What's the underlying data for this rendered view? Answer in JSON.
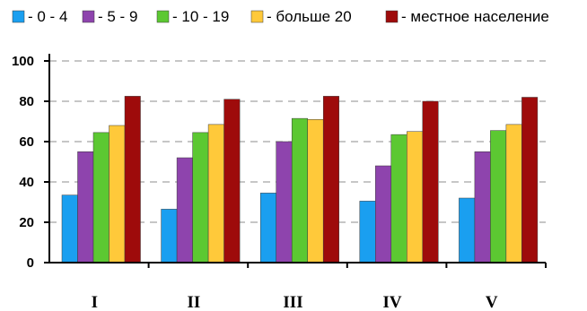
{
  "chart_data": {
    "type": "bar",
    "title": "",
    "xlabel": "",
    "ylabel": "",
    "categories": [
      "I",
      "II",
      "III",
      "IV",
      "V"
    ],
    "series": [
      {
        "name": "- 0 - 4",
        "color": "#1a9ff0",
        "values": [
          33.5,
          26.5,
          34.5,
          30.5,
          32
        ]
      },
      {
        "name": "- 5 - 9",
        "color": "#8e44ad",
        "values": [
          55,
          52,
          60,
          48,
          55
        ]
      },
      {
        "name": "- 10 - 19",
        "color": "#5cc832",
        "values": [
          64.5,
          64.5,
          71.5,
          63.5,
          65.5
        ]
      },
      {
        "name": "- больше 20",
        "color": "#ffc93a",
        "values": [
          68,
          68.5,
          71,
          65,
          68.5
        ]
      },
      {
        "name": "- местное население",
        "color": "#9e0b0b",
        "values": [
          82.5,
          81,
          82.5,
          80,
          82
        ]
      }
    ],
    "ylim": [
      0,
      100
    ],
    "yticks": [
      "0",
      "20",
      "40",
      "60",
      "80",
      "100"
    ],
    "grid": true,
    "legend_position": "top"
  }
}
